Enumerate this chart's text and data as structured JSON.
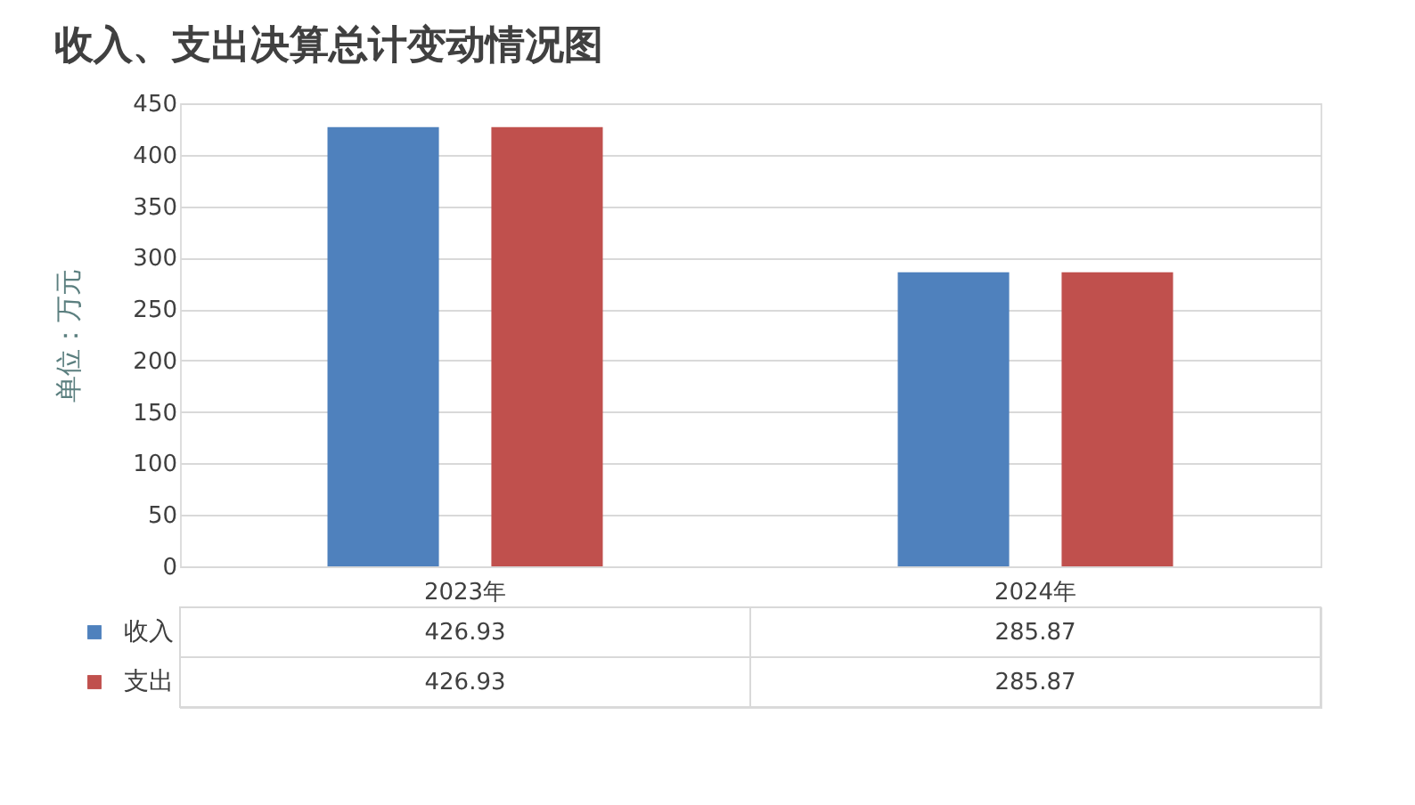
{
  "chart_data": {
    "type": "bar",
    "title": "收入、支出决算总计变动情况图",
    "ylabel": "单位：万元",
    "categories": [
      "2023年",
      "2024年"
    ],
    "series": [
      {
        "name": "收入",
        "color": "#4f81bd",
        "values": [
          426.93,
          285.87
        ]
      },
      {
        "name": "支出",
        "color": "#c0504d",
        "values": [
          426.93,
          285.87
        ]
      }
    ],
    "ylim": [
      0,
      450
    ],
    "yticks": [
      0,
      50,
      100,
      150,
      200,
      250,
      300,
      350,
      400,
      450
    ],
    "grid": "y",
    "legend": "bottom",
    "data_labels": true
  }
}
